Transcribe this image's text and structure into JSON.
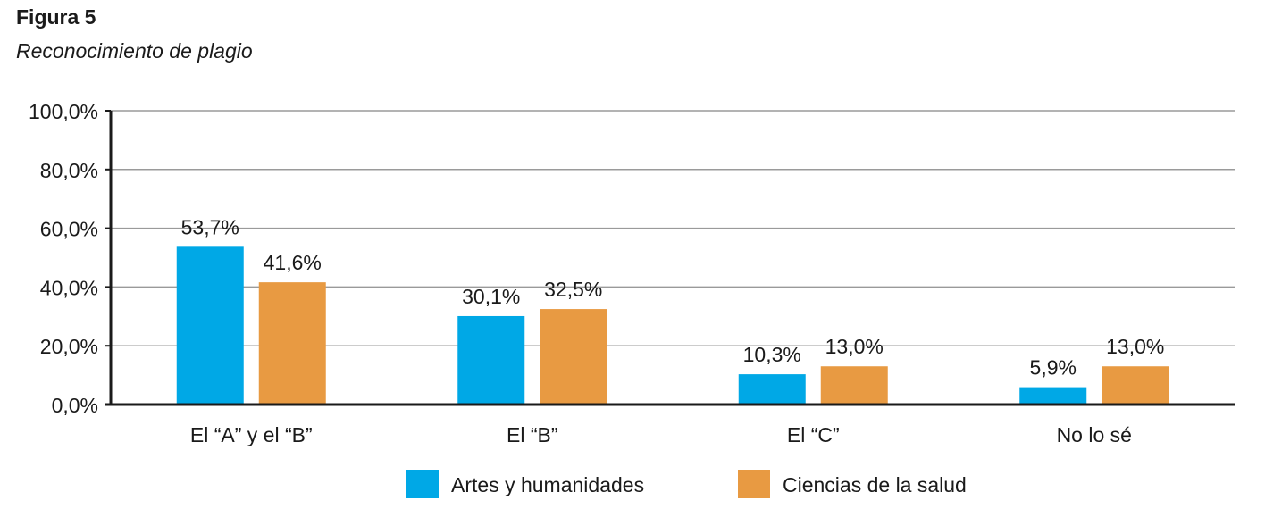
{
  "figure": {
    "label": "Figura 5",
    "subtitle": "Reconocimiento de plagio"
  },
  "chart_data": {
    "type": "bar",
    "title": "Reconocimiento de plagio",
    "xlabel": "",
    "ylabel": "",
    "ylim": [
      0,
      100
    ],
    "yticks": [
      0,
      20,
      40,
      60,
      80,
      100
    ],
    "ytick_labels": [
      "0,0%",
      "20,0%",
      "40,0%",
      "60,0%",
      "80,0%",
      "100,0%"
    ],
    "grid": true,
    "legend_position": "bottom",
    "categories": [
      "El “A” y el “B”",
      "El “B”",
      "El “C”",
      "No lo sé"
    ],
    "series": [
      {
        "name": "Artes y humanidades",
        "color": "#00a8e6",
        "values": [
          53.7,
          30.1,
          10.3,
          5.9
        ],
        "labels": [
          "53,7%",
          "30,1%",
          "10,3%",
          "5,9%"
        ]
      },
      {
        "name": "Ciencias de la salud",
        "color": "#e89a42",
        "values": [
          41.6,
          32.5,
          13.0,
          13.0
        ],
        "labels": [
          "41,6%",
          "32,5%",
          "13,0%",
          "13,0%"
        ]
      }
    ]
  }
}
